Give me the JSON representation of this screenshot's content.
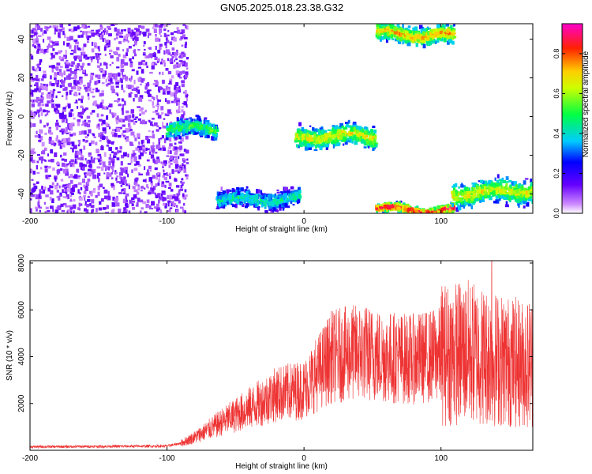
{
  "title": "GN05.2025.018.23.38.G32",
  "chart_data": [
    {
      "type": "heatmap",
      "xlabel": "Height of straight line (km)",
      "ylabel": "Frequency (Hz)",
      "xlim": [
        -200,
        167
      ],
      "ylim": [
        -50,
        48
      ],
      "x_ticks": [
        "-200",
        "-100",
        "0",
        "100"
      ],
      "y_ticks": [
        "-40",
        "-20",
        "0",
        "20",
        "40"
      ],
      "colorbar": {
        "label": "Normalized spectral amplitude",
        "range": [
          0,
          0.95
        ],
        "ticks": [
          "0.0",
          "0.2",
          "0.4",
          "0.6",
          "0.8"
        ],
        "colormap": "rainbow (white-purple-blue-cyan-green-yellow-red-magenta)"
      },
      "features": [
        {
          "description": "noise region",
          "x_range": [
            -200,
            -85
          ],
          "y_range": [
            -50,
            48
          ],
          "amplitude": 0.1
        },
        {
          "description": "trace",
          "x_range": [
            -100,
            -63
          ],
          "y_range": [
            -12,
            -2
          ],
          "amplitude": 0.35
        },
        {
          "description": "trace",
          "x_range": [
            -63,
            -3
          ],
          "y_range": [
            -47,
            -37
          ],
          "amplitude": 0.3
        },
        {
          "description": "trace",
          "x_range": [
            -6,
            53
          ],
          "y_range": [
            -17,
            -5
          ],
          "amplitude": 0.45
        },
        {
          "description": "trace",
          "x_range": [
            53,
            110
          ],
          "y_range": [
            -50,
            -45
          ],
          "amplitude": 0.6
        },
        {
          "description": "trace",
          "x_range": [
            53,
            110
          ],
          "y_range": [
            38,
            48
          ],
          "amplitude": 0.5
        },
        {
          "description": "trace",
          "x_range": [
            108,
            167
          ],
          "y_range": [
            -46,
            -33
          ],
          "amplitude": 0.45
        }
      ]
    },
    {
      "type": "line",
      "xlabel": "Height of straight line (km)",
      "ylabel": "SNR (10 * v/v)",
      "xlim": [
        -200,
        167
      ],
      "ylim": [
        0,
        8100
      ],
      "x_ticks": [
        "-200",
        "-100",
        "0",
        "100"
      ],
      "y_ticks": [
        "2000",
        "4000",
        "6000",
        "8000"
      ],
      "color": "#ee3333",
      "envelope": {
        "x": [
          -200,
          -100,
          -90,
          -80,
          -60,
          -40,
          -20,
          0,
          10,
          20,
          40,
          60,
          80,
          100,
          120,
          140,
          160,
          167
        ],
        "y": [
          150,
          180,
          300,
          550,
          1200,
          1800,
          2400,
          2600,
          3300,
          4000,
          4200,
          4000,
          3900,
          4100,
          4200,
          3900,
          3700,
          3800
        ]
      },
      "peak": {
        "x": 137,
        "y": 8100
      }
    }
  ]
}
